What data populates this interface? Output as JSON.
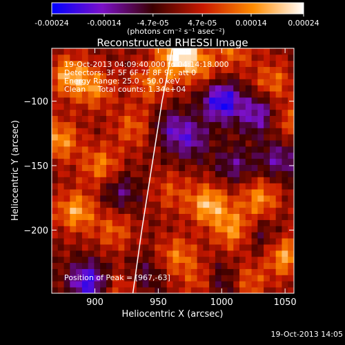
{
  "colorbar": {
    "tick_labels": [
      "-0.00024",
      "-0.00014",
      "-4.7e-05",
      "4.7e-05",
      "0.00014",
      "0.00024"
    ],
    "tick_values": [
      -0.00024,
      -0.00014,
      -4.7e-05,
      4.7e-05,
      0.00014,
      0.00024
    ],
    "range": [
      -0.00024,
      0.00024
    ],
    "unit_label": "(photons cm⁻² s⁻¹ asec⁻²)",
    "colors": [
      "#0000ff",
      "#7b10c8",
      "#3a0000",
      "#c81800",
      "#ff8c00",
      "#ffffff"
    ]
  },
  "chart_data": {
    "type": "heatmap",
    "title": "Reconstructed RHESSI Image",
    "xlabel": "Heliocentric X (arcsec)",
    "ylabel": "Heliocentric Y (arcsec)",
    "xlim": [
      866,
      1057
    ],
    "ylim": [
      -249,
      -59
    ],
    "x_ticks": [
      900,
      950,
      1000,
      1050
    ],
    "x_tick_labels": [
      "900",
      "950",
      "1000",
      "1050"
    ],
    "y_ticks": [
      -100,
      -150,
      -200
    ],
    "y_tick_labels": [
      "−100",
      "−150",
      "−200"
    ],
    "limb_curve": [
      [
        930,
        -249
      ],
      [
        937,
        -200
      ],
      [
        945,
        -150
      ],
      [
        953,
        -100
      ],
      [
        959,
        -70
      ],
      [
        961,
        -59
      ]
    ],
    "hot_spots": [
      {
        "x": 880,
        "y": -80,
        "v": 0.00016
      },
      {
        "x": 900,
        "y": -90,
        "v": 0.00012
      },
      {
        "x": 872,
        "y": -130,
        "v": 0.00015
      },
      {
        "x": 905,
        "y": -150,
        "v": 0.00013
      },
      {
        "x": 930,
        "y": -120,
        "v": 0.0001
      },
      {
        "x": 885,
        "y": -185,
        "v": 0.00016
      },
      {
        "x": 915,
        "y": -200,
        "v": 0.0001
      },
      {
        "x": 967,
        "y": -63,
        "v": 0.00024
      },
      {
        "x": 945,
        "y": -85,
        "v": 0.00012
      },
      {
        "x": 985,
        "y": -75,
        "v": 9e-05
      },
      {
        "x": 1010,
        "y": -60,
        "v": 0.0001
      },
      {
        "x": 1040,
        "y": -85,
        "v": 0.00011
      },
      {
        "x": 1050,
        "y": -115,
        "v": 0.0001
      },
      {
        "x": 990,
        "y": -180,
        "v": 0.00018
      },
      {
        "x": 1010,
        "y": -200,
        "v": 0.00015
      },
      {
        "x": 1030,
        "y": -175,
        "v": 0.00014
      },
      {
        "x": 1050,
        "y": -220,
        "v": 0.00016
      },
      {
        "x": 965,
        "y": -220,
        "v": 0.00012
      },
      {
        "x": 985,
        "y": -240,
        "v": 0.0001
      },
      {
        "x": 920,
        "y": -245,
        "v": 9e-05
      },
      {
        "x": 960,
        "y": -170,
        "v": 8e-05
      },
      {
        "x": 1020,
        "y": -240,
        "v": 0.00011
      }
    ],
    "cold_spots": [
      {
        "x": 1000,
        "y": -100,
        "v": -0.00022
      },
      {
        "x": 1030,
        "y": -110,
        "v": -0.00016
      },
      {
        "x": 1045,
        "y": -145,
        "v": -0.00012
      },
      {
        "x": 895,
        "y": -240,
        "v": -0.0002
      },
      {
        "x": 940,
        "y": -235,
        "v": -8e-05
      },
      {
        "x": 1000,
        "y": -240,
        "v": -0.00012
      },
      {
        "x": 975,
        "y": -130,
        "v": -0.00012
      },
      {
        "x": 920,
        "y": -170,
        "v": -0.0001
      },
      {
        "x": 960,
        "y": -120,
        "v": -0.0001
      },
      {
        "x": 1010,
        "y": -150,
        "v": -0.0001
      },
      {
        "x": 1030,
        "y": -205,
        "v": -8e-05
      }
    ],
    "annotations": {
      "time_range": "19-Oct-2013 04:09:40.000 to 04:14:18.000",
      "detectors": "Detectors: 3F 5F 6F 7F 8F 9F, att 0",
      "energy_range": "Energy Range: 25.0 - 50.0 keV",
      "method_counts": "Clean     Total counts: 1.34e+04",
      "peak": "Position of Peak = [967,-63]"
    }
  },
  "footer": {
    "timestamp": "19-Oct-2013 14:05"
  }
}
